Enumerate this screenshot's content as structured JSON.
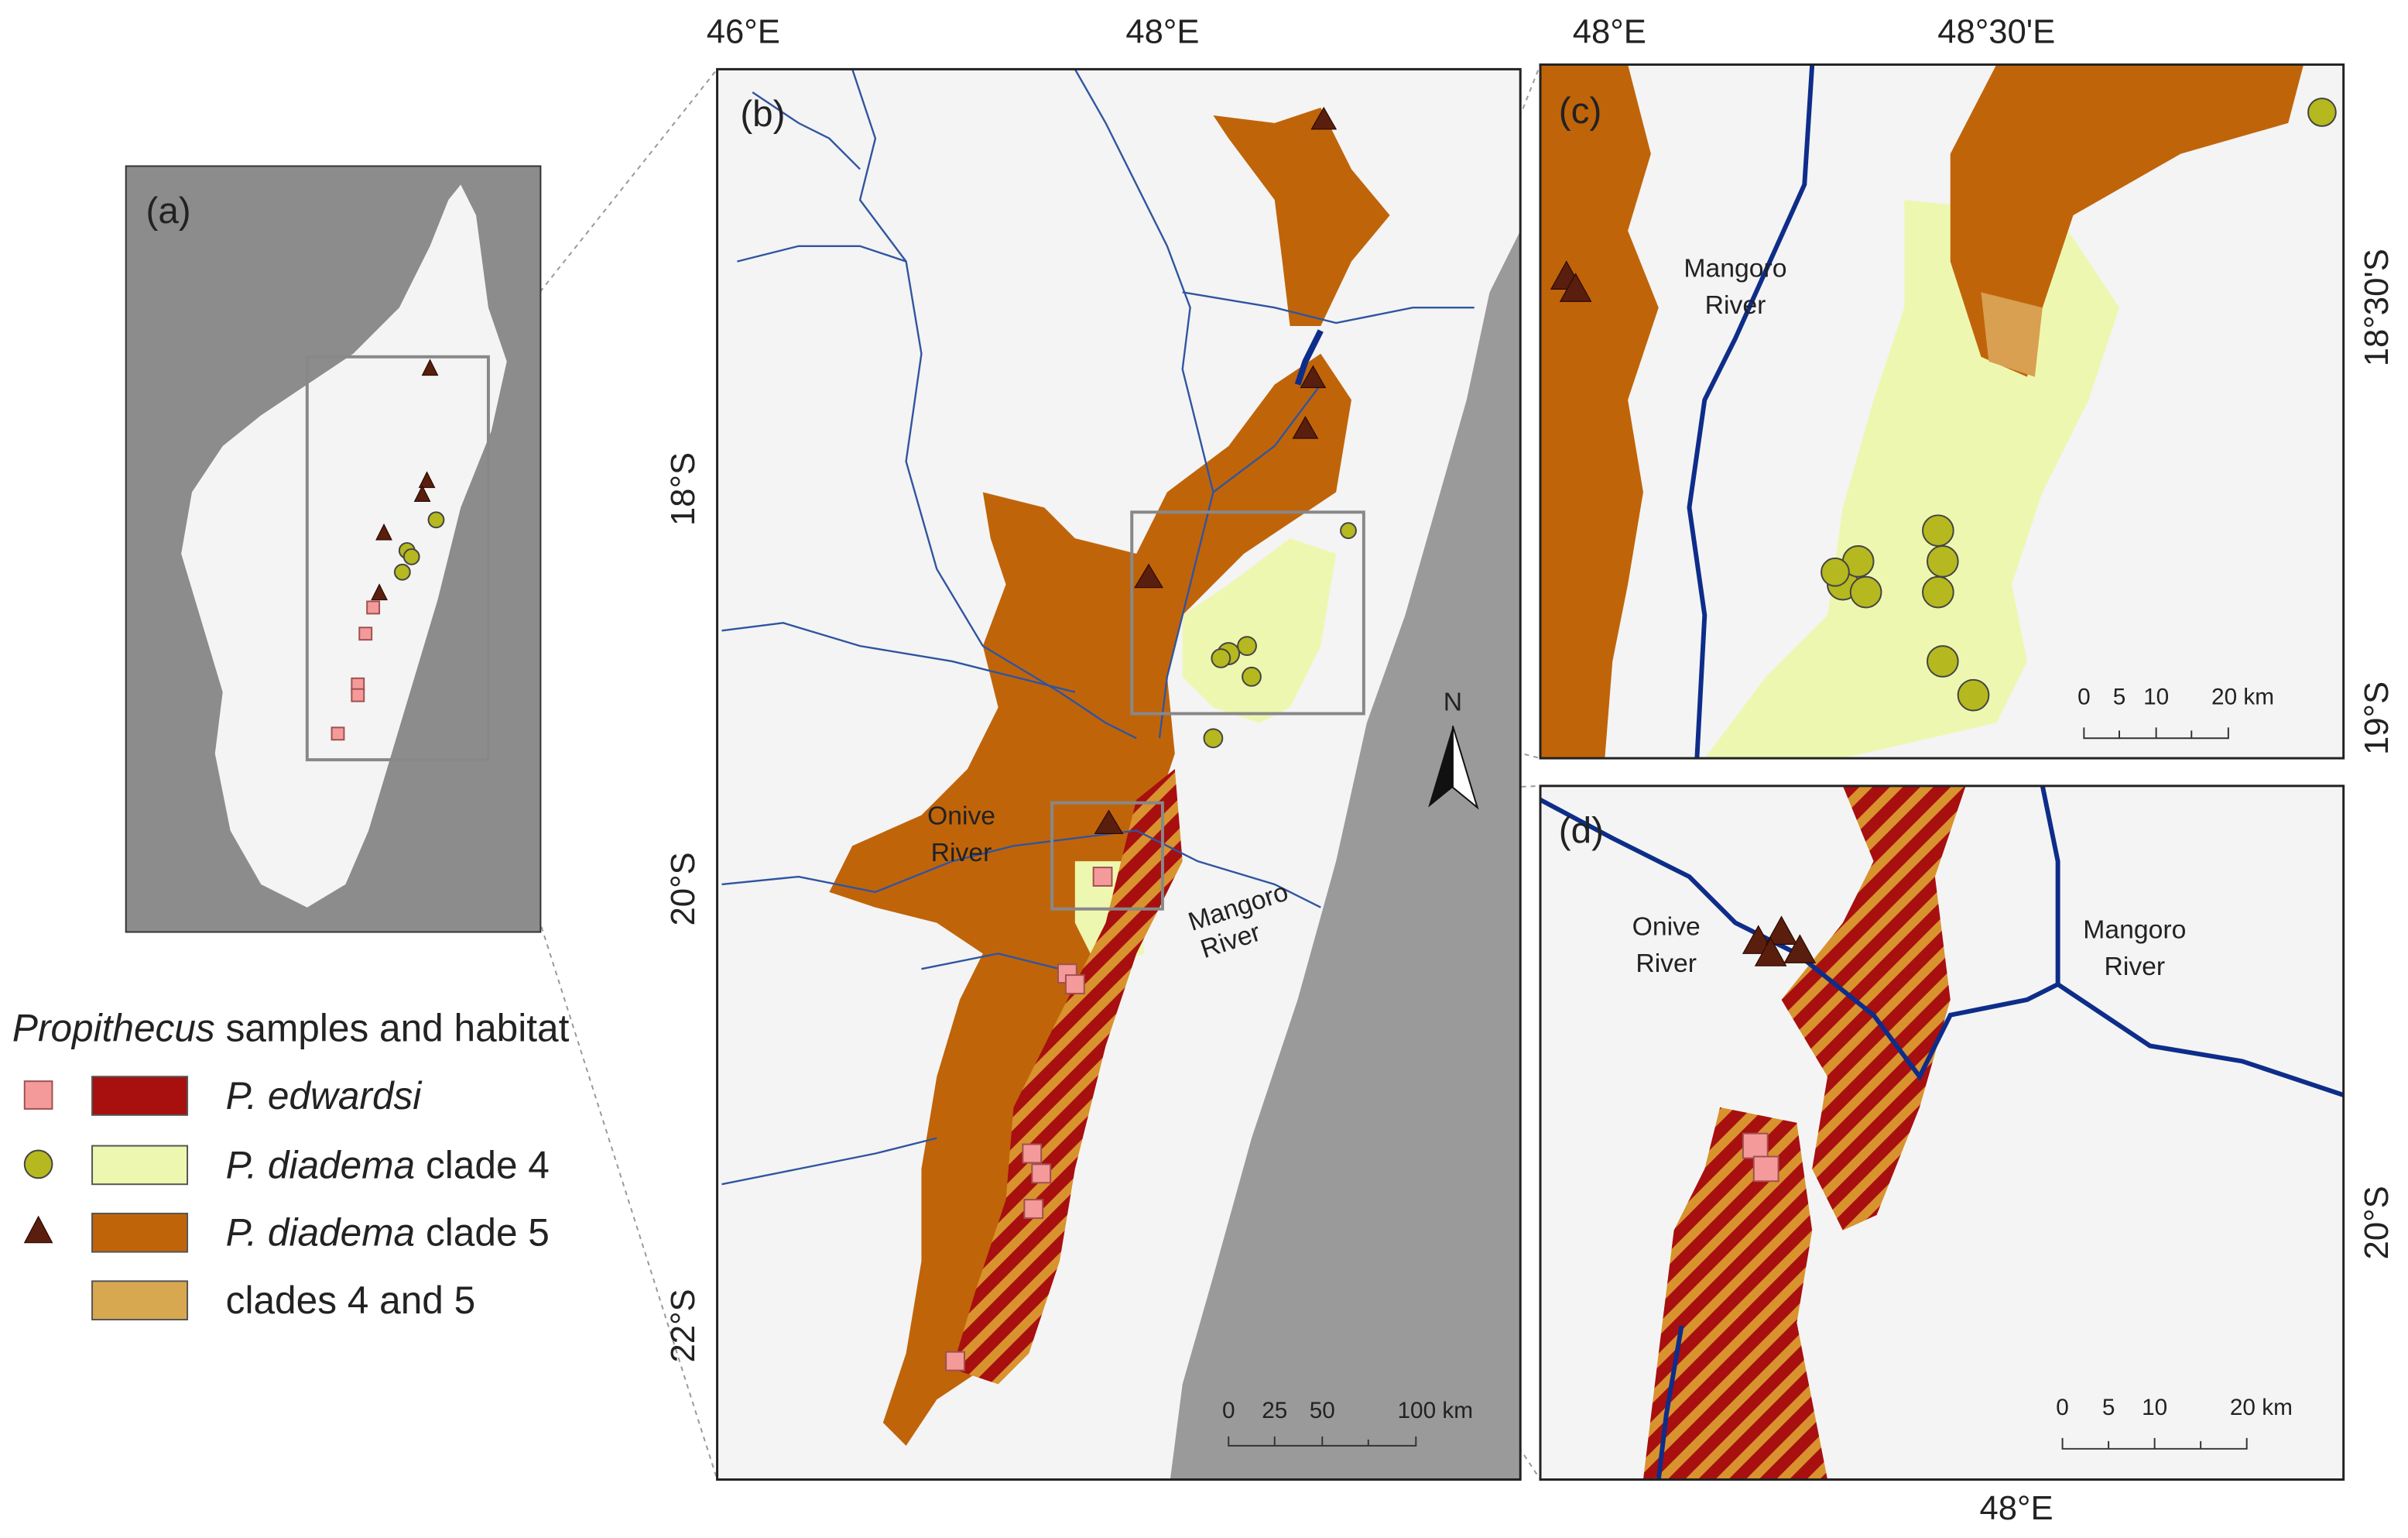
{
  "panel_a": {
    "label": "(a)"
  },
  "panel_b": {
    "label": "(b)",
    "x_ticks": [
      "46°E",
      "48°E"
    ],
    "y_ticks": [
      "18°S",
      "20°S",
      "22°S"
    ],
    "river_labels": [
      [
        "Onive",
        "River"
      ],
      [
        "Mangoro",
        "River"
      ]
    ],
    "north": "N",
    "scale_bar": [
      "0",
      "25",
      "50",
      "100 km"
    ]
  },
  "panel_c": {
    "label": "(c)",
    "x_ticks": [
      "48°E",
      "48°30'E"
    ],
    "y_ticks": [
      "18°30'S",
      "19°S"
    ],
    "river_labels": [
      [
        "Mangoro",
        "River"
      ]
    ],
    "scale_bar": [
      "0",
      "5",
      "10",
      "20 km"
    ]
  },
  "panel_d": {
    "label": "(d)",
    "x_ticks": [
      "48°E"
    ],
    "y_ticks": [
      "20°S"
    ],
    "river_labels": [
      [
        "Onive",
        "River"
      ],
      [
        "Mangoro",
        "River"
      ]
    ],
    "scale_bar": [
      "0",
      "5",
      "10",
      "20 km"
    ]
  },
  "legend": {
    "title": [
      "Propithecus",
      "samples and habitat"
    ],
    "items": [
      {
        "species": "P. edwardsi"
      },
      {
        "species": "P. diadema",
        "suffix": "clade 4"
      },
      {
        "species": "P. diadema",
        "suffix": "clade 5"
      },
      {
        "text": "clades 4 and 5"
      }
    ]
  }
}
